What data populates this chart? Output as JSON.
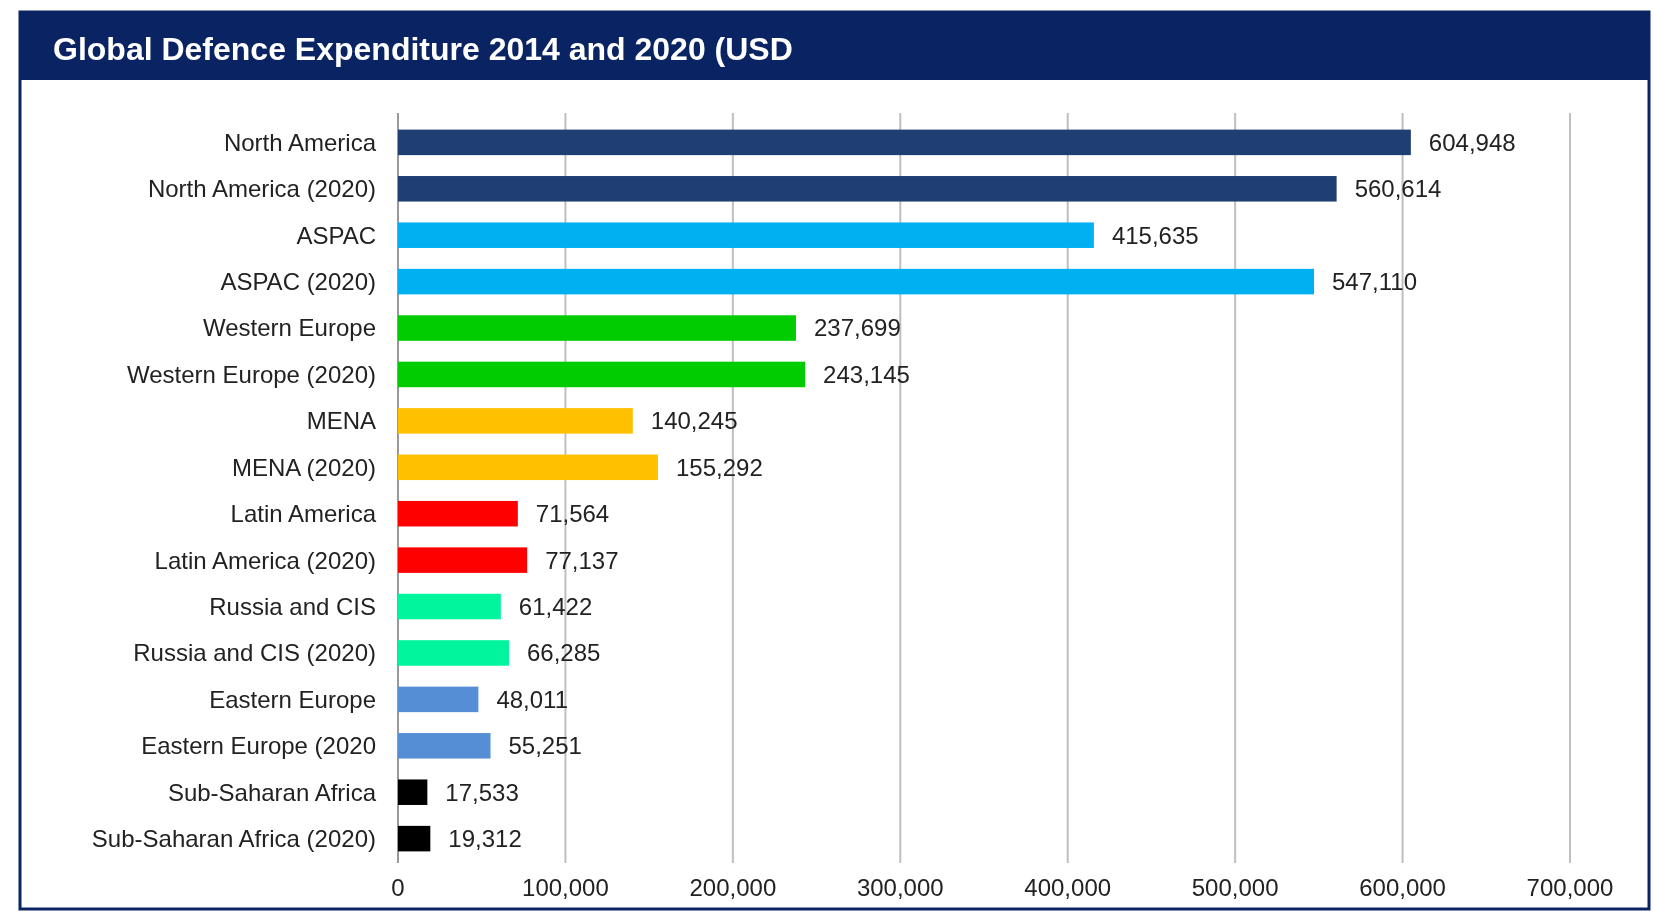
{
  "chart_data": {
    "type": "bar",
    "orientation": "horizontal",
    "title": "Global Defence Expenditure 2014 and 2020 (USD",
    "categories": [
      "North America",
      "North America (2020)",
      "ASPAC",
      "ASPAC (2020)",
      "Western Europe",
      "Western Europe (2020)",
      "MENA",
      "MENA (2020)",
      "Latin America",
      "Latin America (2020)",
      "Russia and CIS",
      "Russia and CIS (2020)",
      "Eastern Europe",
      "Eastern Europe (2020",
      "Sub-Saharan Africa",
      "Sub-Saharan Africa (2020)"
    ],
    "values": [
      604948,
      560614,
      415635,
      547110,
      237699,
      243145,
      140245,
      155292,
      71564,
      77137,
      61422,
      66285,
      48011,
      55251,
      17533,
      19312
    ],
    "value_labels": [
      "604,948",
      "560,614",
      "415,635",
      "547,110",
      "237,699",
      "243,145",
      "140,245",
      "155,292",
      "71,564",
      "77,137",
      "61,422",
      "66,285",
      "48,011",
      "55,251",
      "17,533",
      "19,312"
    ],
    "colors": [
      "#1f3f73",
      "#1f3f73",
      "#00b0f0",
      "#00b0f0",
      "#00cc00",
      "#00cc00",
      "#ffc000",
      "#ffc000",
      "#ff0000",
      "#ff0000",
      "#00f59c",
      "#00f59c",
      "#558ed5",
      "#558ed5",
      "#000000",
      "#000000"
    ],
    "xlim": [
      0,
      700000
    ],
    "xticks": [
      0,
      {
        "value": 100000,
        "label": "100,000"
      },
      {
        "value": 200000,
        "label": "200,000"
      },
      {
        "value": 300000,
        "label": "300,000"
      },
      {
        "value": 400000,
        "label": "400,000"
      },
      {
        "value": 500000,
        "label": "500,000"
      },
      {
        "value": 600000,
        "label": "600,000"
      },
      {
        "value": 700000,
        "label": "700,000"
      }
    ],
    "grid": "x"
  }
}
